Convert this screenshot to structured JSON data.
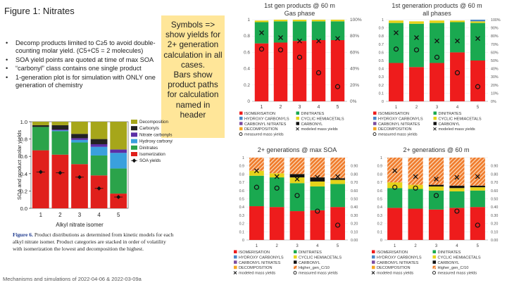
{
  "page": {
    "title": "Figure 1: Nitrates",
    "footer": "Mechanisms and simulations of 2022-04-06  & 2022-03-09a",
    "bullets": [
      "Decomp products limited to C≥5 to avoid double-counting molar yield. (C5+C5 = 2 molecules)",
      "SOA yield points are quoted at time of max SOA",
      "“carbonyl” class contains one single product",
      "1-generation plot is for simulation with ONLY one generation of chemistry"
    ],
    "callout": "Symbols =>\nshow yields for\n2+ generation\ncalculation in all\ncases.\nBars show\nproduct paths\nfor calculation\nnamed in\nheader",
    "caption_label": "Figure 6.",
    "caption_text": " Product distributions as determined from kinetic models for each alkyl nitrate isomer. Product categories are stacked in order of volatility with isomerization the lowest and decomposition the highest."
  },
  "colors": {
    "isomerisation": "#ee1c1c",
    "dinitrates": "#1aa950",
    "hydroxy": "#4a86c8",
    "cyclic": "#e5d31a",
    "carbonyl_nitrates": "#7b4ca0",
    "carbonyl": "#111111",
    "decomposition": "#f5a623",
    "higher_gen": "#f07a2a",
    "fig6_decomp": "#a6a61a",
    "fig6_carbonyls": "#222222",
    "fig6_nitrate_carbonyls": "#5b2ea6",
    "fig6_hydroxy": "#3aa0dd",
    "fig6_dinitrates": "#2ba34a",
    "fig6_isomerization": "#e0201c"
  },
  "chart_data": [
    {
      "id": "fig6",
      "type": "bar",
      "title": "",
      "xlabel": "Alkyl nitrate isomer",
      "ylabel": "SOA and product molar yields",
      "categories": [
        "1",
        "2",
        "3",
        "4",
        "5"
      ],
      "ylim": [
        0,
        1.0
      ],
      "yticks": [
        "0.0",
        "0.2",
        "0.4",
        "0.6",
        "0.8",
        "1.0"
      ],
      "legend": [
        "Decomposition",
        "Carbonyls",
        "Nitrate carbonyls",
        "Hydroxy carbonyls",
        "Dinitrates",
        "Isomerization",
        "SOA yields"
      ],
      "series": [
        {
          "name": "Isomerization",
          "values": [
            0.67,
            0.62,
            0.51,
            0.38,
            0.17
          ]
        },
        {
          "name": "Dinitrates",
          "values": [
            0.27,
            0.27,
            0.25,
            0.23,
            0.29
          ]
        },
        {
          "name": "Hydroxy carbonyls",
          "values": [
            0.0,
            0.01,
            0.03,
            0.1,
            0.18
          ]
        },
        {
          "name": "Nitrate carbonyls",
          "values": [
            0.0,
            0.01,
            0.02,
            0.03,
            0.04
          ]
        },
        {
          "name": "Carbonyls",
          "values": [
            0.02,
            0.05,
            0.05,
            0.06,
            0.0
          ]
        },
        {
          "name": "Decomposition",
          "values": [
            0.04,
            0.04,
            0.14,
            0.2,
            0.32
          ]
        }
      ],
      "soa_yields": [
        0.42,
        0.41,
        0.36,
        0.23,
        0.13
      ]
    },
    {
      "id": "p1",
      "type": "bar",
      "title": "1st gen products @ 60 m",
      "subtitle": "Gas phase",
      "categories": [
        "1",
        "2",
        "3",
        "4",
        "5"
      ],
      "ylim": [
        0,
        1
      ],
      "yticks": [
        "0",
        "0.2",
        "0.4",
        "0.6",
        "0.8",
        "1"
      ],
      "y2ticks": [
        "0%",
        "20%",
        "40%",
        "60%",
        "80%",
        "100%"
      ],
      "series": [
        {
          "name": "ISOMERISATION",
          "values": [
            0.71,
            0.72,
            0.74,
            0.75,
            0.75
          ]
        },
        {
          "name": "DINITRATES",
          "values": [
            0.26,
            0.26,
            0.24,
            0.23,
            0.23
          ]
        },
        {
          "name": "CYCLIC HEMIACETALS",
          "values": [
            0.02,
            0.02,
            0.02,
            0.02,
            0.02
          ]
        }
      ],
      "modeled_mass_yields": [
        0.84,
        0.78,
        0.74,
        0.74,
        0.77
      ],
      "measured_mass_yields": [
        0.64,
        0.63,
        0.54,
        0.35,
        0.18
      ],
      "legend": [
        "ISOMERISATION",
        "DINITRATES",
        "HYDROXY CARBONYLS",
        "CYCLIC HEMIACETALS",
        "CARBONYL NITRATES",
        "CARBONYL",
        "DECOMPOSITION",
        "modeled mass yields",
        "measured mass yields"
      ]
    },
    {
      "id": "p2",
      "type": "bar",
      "title": "1st generation products @ 60 m",
      "subtitle": "all phases",
      "categories": [
        "1",
        "2",
        "3",
        "4",
        "5"
      ],
      "ylim": [
        0,
        1
      ],
      "yticks": [
        "0",
        "0.1",
        "0.2",
        "0.3",
        "0.4",
        "0.5",
        "0.6",
        "0.7",
        "0.8",
        "0.9",
        "1"
      ],
      "y2ticks": [
        "0%",
        "10%",
        "20%",
        "30%",
        "40%",
        "50%",
        "60%",
        "70%",
        "80%",
        "90%",
        "100%"
      ],
      "series": [
        {
          "name": "ISOMERISATION",
          "values": [
            0.47,
            0.42,
            0.47,
            0.6,
            0.5
          ]
        },
        {
          "name": "DINITRATES",
          "values": [
            0.49,
            0.53,
            0.49,
            0.37,
            0.46
          ]
        },
        {
          "name": "CYCLIC HEMIACETALS",
          "values": [
            0.03,
            0.03,
            0.03,
            0.02,
            0.02
          ]
        },
        {
          "name": "HYDROXY CARBONYLS",
          "values": [
            0.0,
            0.0,
            0.0,
            0.0,
            0.02
          ]
        }
      ],
      "modeled_mass_yields": [
        0.84,
        0.78,
        0.74,
        0.74,
        0.77
      ],
      "measured_mass_yields": [
        0.64,
        0.63,
        0.54,
        0.35,
        0.18
      ],
      "legend": [
        "ISOMERISATION",
        "DINITRATES",
        "HYDROXY CARBONYLS",
        "CYCLIC HEMIACETALS",
        "CARBONYL NITRATES",
        "CARBONYL",
        "DECOMPOSITION",
        "modeled mass yields",
        "measured mass yields"
      ]
    },
    {
      "id": "p3",
      "type": "bar",
      "title": "2+ generations @ max SOA",
      "categories": [
        "1",
        "2",
        "3",
        "4",
        "5"
      ],
      "ylim": [
        0,
        1
      ],
      "yticks": [
        "0",
        "0.1",
        "0.2",
        "0.3",
        "0.4",
        "0.5",
        "0.6",
        "0.7",
        "0.8",
        "0.9",
        "1"
      ],
      "y2ticks": [
        "0.00",
        "0.10",
        "0.20",
        "0.30",
        "0.40",
        "0.50",
        "0.60",
        "0.70",
        "0.80",
        "0.90"
      ],
      "series": [
        {
          "name": "ISOMERISATION",
          "values": [
            0.41,
            0.4,
            0.35,
            0.36,
            0.4
          ]
        },
        {
          "name": "DINITRATES",
          "values": [
            0.37,
            0.36,
            0.34,
            0.29,
            0.28
          ]
        },
        {
          "name": "CYCLIC HEMIACETALS",
          "values": [
            0.06,
            0.05,
            0.07,
            0.06,
            0.05
          ]
        },
        {
          "name": "CARBONYL",
          "values": [
            0.0,
            0.0,
            0.04,
            0.05,
            0.02
          ]
        },
        {
          "name": "Higher_gen_C/10",
          "values": [
            0.16,
            0.19,
            0.2,
            0.24,
            0.25
          ]
        }
      ],
      "modeled_mass_yields": [
        0.84,
        0.77,
        0.74,
        0.76,
        0.77
      ],
      "measured_mass_yields": [
        0.64,
        0.63,
        0.54,
        0.35,
        0.18
      ],
      "legend": [
        "ISOMERISATION",
        "DINITRATES",
        "HYDROXY CARBONYLS",
        "CYCLIC HEMIACETALS",
        "CARBONYL NITRATES",
        "CARBONYL",
        "DECOMPOSITION",
        "Higher_gen_C/10",
        "modeled mass yields",
        "measured mass yields"
      ]
    },
    {
      "id": "p4",
      "type": "bar",
      "title": "2+ generations @ 60 m",
      "categories": [
        "1",
        "2",
        "3",
        "4",
        "5"
      ],
      "ylim": [
        0,
        1
      ],
      "yticks": [
        "0",
        "0.1",
        "0.2",
        "0.3",
        "0.4",
        "0.5",
        "0.6",
        "0.7",
        "0.8",
        "0.9",
        "1"
      ],
      "y2ticks": [
        "0.00",
        "0.10",
        "0.20",
        "0.30",
        "0.40",
        "0.50",
        "0.60",
        "0.70",
        "0.80",
        "0.90"
      ],
      "series": [
        {
          "name": "ISOMERISATION",
          "values": [
            0.39,
            0.38,
            0.37,
            0.39,
            0.4
          ]
        },
        {
          "name": "DINITRATES",
          "values": [
            0.24,
            0.24,
            0.23,
            0.2,
            0.2
          ]
        },
        {
          "name": "CYCLIC HEMIACETALS",
          "values": [
            0.07,
            0.05,
            0.05,
            0.04,
            0.04
          ]
        },
        {
          "name": "CARBONYL",
          "values": [
            0.0,
            0.0,
            0.02,
            0.03,
            0.02
          ]
        },
        {
          "name": "Higher_gen_C/10",
          "values": [
            0.3,
            0.33,
            0.33,
            0.34,
            0.34
          ]
        }
      ],
      "modeled_mass_yields": [
        0.84,
        0.77,
        0.74,
        0.76,
        0.77
      ],
      "measured_mass_yields": [
        0.64,
        0.63,
        0.54,
        0.35,
        0.18
      ],
      "legend": [
        "ISOMERISATION",
        "DINITRATES",
        "HYDROXY CARBONYLS",
        "CYCLIC HEMIACETALS",
        "CARBONYL NITRATES",
        "CARBONYL",
        "DECOMPOSITION",
        "Higher_gen_C/10",
        "modeled mass yields",
        "measured mass yields"
      ]
    }
  ]
}
